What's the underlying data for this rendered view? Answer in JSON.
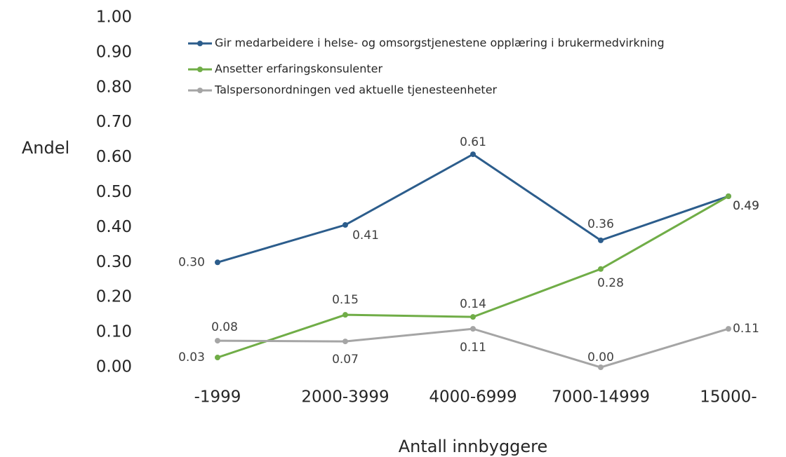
{
  "chart_data": {
    "type": "line",
    "y_label": "Andel",
    "x_label": "Antall innbyggere",
    "categories": [
      "-1999",
      "2000-3999",
      "4000-6999",
      "7000-14999",
      "15000-"
    ],
    "series": [
      {
        "name": "Gir medarbeidere i helse- og omsorgstjenestene opplæring i brukermedvirkning",
        "color": "#2c5d8c",
        "values": [
          0.3,
          0.407,
          0.609,
          0.363,
          0.489
        ],
        "value_labels": [
          "0.30",
          "0.41",
          "0.61",
          "0.36",
          "0.49"
        ]
      },
      {
        "name": "Ansetter erfaringskonsulenter",
        "color": "#70ad47",
        "values": [
          0.028,
          0.15,
          0.144,
          0.281,
          0.489
        ],
        "value_labels": [
          "0.03",
          "0.15",
          "0.14",
          "0.28",
          "0.49"
        ]
      },
      {
        "name": "Talspersonordningen ved aktuelle tjenesteenheter",
        "color": "#a5a5a5",
        "values": [
          0.076,
          0.074,
          0.11,
          0.0,
          0.11
        ],
        "value_labels": [
          "0.08",
          "0.07",
          "0.11",
          "0.00",
          "0.11"
        ]
      }
    ],
    "ylim": [
      0,
      1
    ],
    "yticks": [
      {
        "value": 0,
        "label": "0.00"
      },
      {
        "value": 0.1,
        "label": "0.10"
      },
      {
        "value": 0.2,
        "label": "0.20"
      },
      {
        "value": 0.3,
        "label": "0.30"
      },
      {
        "value": 0.4,
        "label": "0.40"
      },
      {
        "value": 0.5,
        "label": "0.50"
      },
      {
        "value": 0.6,
        "label": "0.60"
      },
      {
        "value": 0.7,
        "label": "0.70"
      },
      {
        "value": 0.8,
        "label": "0.80"
      },
      {
        "value": 0.9,
        "label": "0.90"
      },
      {
        "value": 1,
        "label": "1.00"
      }
    ],
    "grid": false,
    "legend": "top-left"
  }
}
